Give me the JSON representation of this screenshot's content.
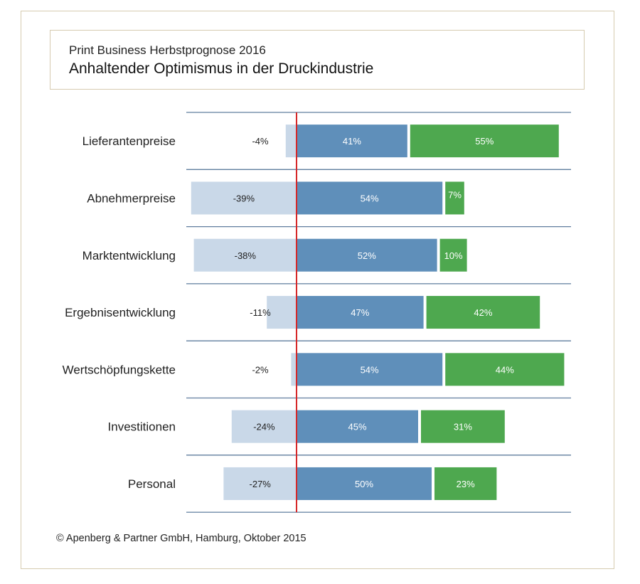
{
  "header": {
    "subtitle": "Print Business Herbstprognose 2016",
    "title": "Anhaltender Optimismus in der Druckindustrie"
  },
  "footer": {
    "copyright": "© Apenberg & Partner GmbH, Hamburg, Oktober 2015"
  },
  "colors": {
    "negative": "#c9d8e8",
    "neutral": "#5f8fba",
    "positive": "#4ea84f",
    "zero_line": "#d62728",
    "separator": "#5f7d9e",
    "frame": "#d6cbb0"
  },
  "chart_data": {
    "type": "bar",
    "orientation": "horizontal",
    "stacked": true,
    "categories": [
      "Lieferantenpreise",
      "Abnehmerpreise",
      "Marktentwicklung",
      "Ergebnisentwicklung",
      "Wertschöpfungskette",
      "Investitionen",
      "Personal"
    ],
    "series": [
      {
        "values": [
          -4,
          -39,
          -38,
          -11,
          -2,
          -24,
          -27
        ],
        "labels": [
          "-4%",
          "-39%",
          "-38%",
          "-11%",
          "-2%",
          "-24%",
          "-27%"
        ]
      },
      {
        "values": [
          41,
          54,
          52,
          47,
          54,
          45,
          50
        ],
        "labels": [
          "41%",
          "54%",
          "52%",
          "47%",
          "54%",
          "45%",
          "50%"
        ]
      },
      {
        "values": [
          55,
          7,
          10,
          42,
          44,
          31,
          23
        ],
        "labels": [
          "55%",
          "7%",
          "10%",
          "42%",
          "44%",
          "31%",
          "23%"
        ]
      }
    ],
    "grid": false,
    "legend": "none"
  }
}
